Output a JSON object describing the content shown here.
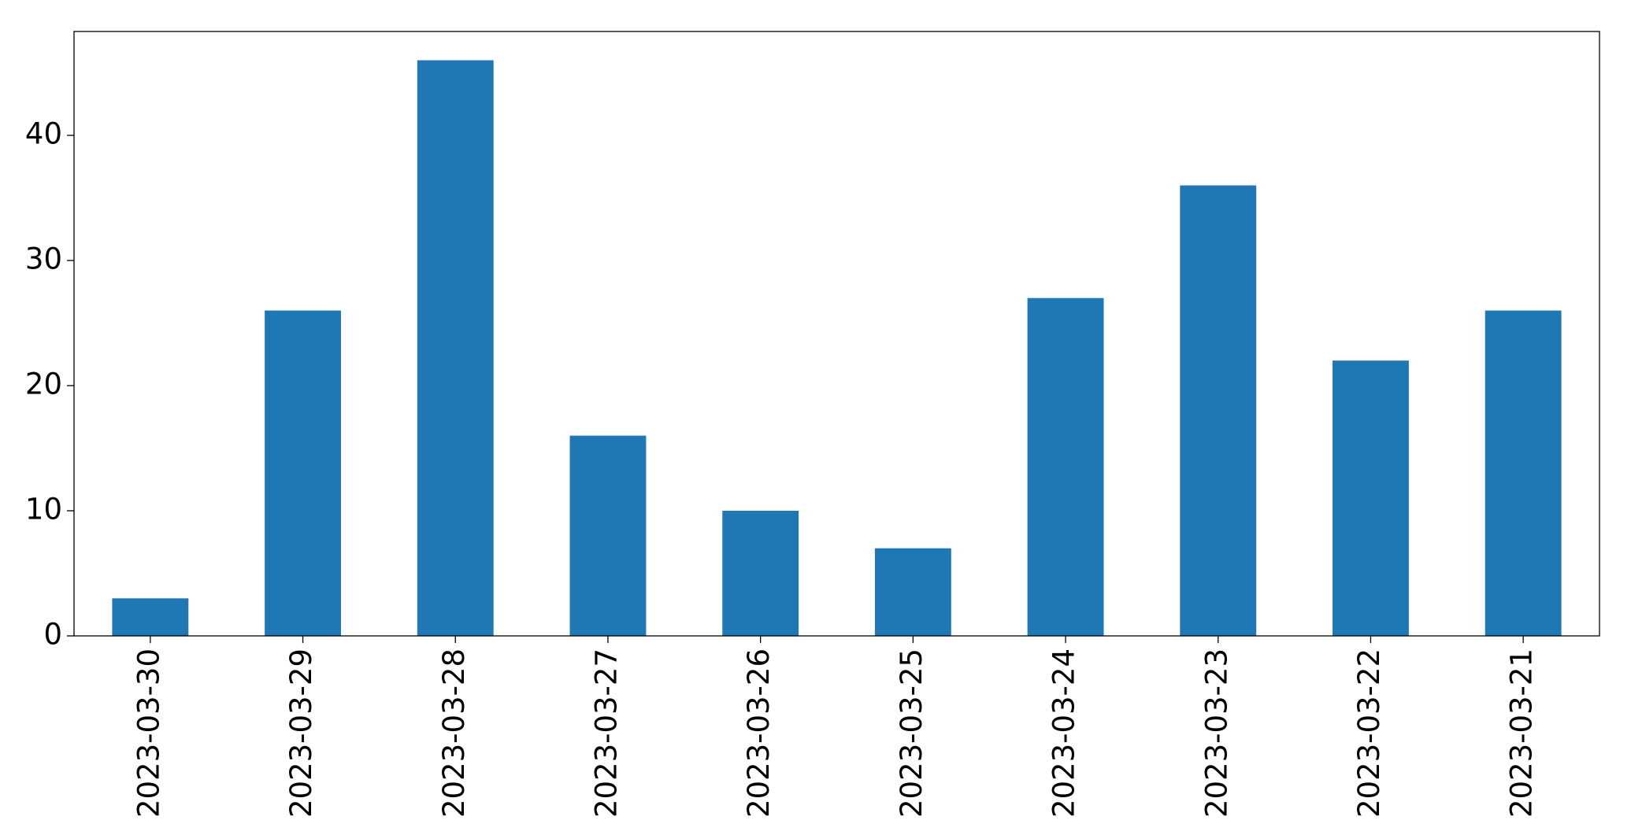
{
  "chart_data": {
    "type": "bar",
    "categories": [
      "2023-03-30",
      "2023-03-29",
      "2023-03-28",
      "2023-03-27",
      "2023-03-26",
      "2023-03-25",
      "2023-03-24",
      "2023-03-23",
      "2023-03-22",
      "2023-03-21"
    ],
    "values": [
      3,
      26,
      46,
      16,
      10,
      7,
      27,
      36,
      22,
      26
    ],
    "color": "#1f77b4",
    "ylim": [
      0,
      48.3
    ],
    "yticks": [
      0,
      10,
      20,
      30,
      40
    ],
    "grid": false
  }
}
